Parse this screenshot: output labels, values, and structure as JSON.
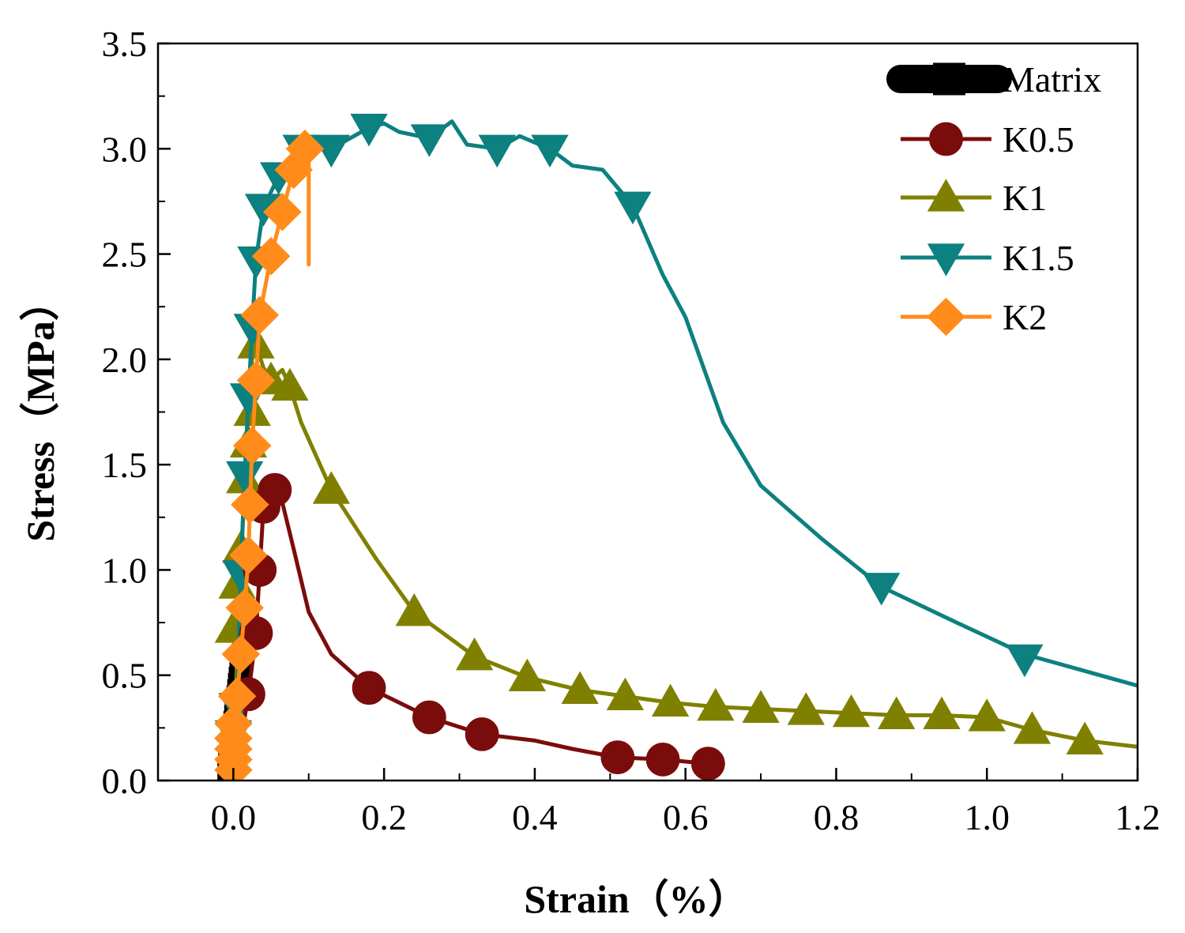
{
  "chart_data": {
    "type": "line",
    "xlabel": "Strain（%）",
    "ylabel": "Stress（MPa）",
    "xlim": [
      -0.1,
      1.2
    ],
    "ylim": [
      0.0,
      3.5
    ],
    "x_ticks": [
      "0.0",
      "0.2",
      "0.4",
      "0.6",
      "0.8",
      "1.0",
      "1.2"
    ],
    "y_ticks": [
      "0.0",
      "0.5",
      "1.0",
      "1.5",
      "2.0",
      "2.5",
      "3.0",
      "3.5"
    ],
    "grid": false,
    "legend_position": "top-right",
    "series": [
      {
        "name": "Matrix",
        "color": "#000000",
        "marker": "square",
        "x": [
          -0.007,
          -0.006,
          -0.005,
          -0.004,
          -0.003,
          -0.002,
          -0.001,
          0.0,
          0.001,
          0.002,
          0.003,
          0.004,
          0.005,
          0.006,
          0.007,
          0.008,
          0.009,
          0.01,
          0.011,
          0.012,
          0.013,
          0.014,
          0.015,
          0.016,
          0.017,
          0.018,
          0.019
        ],
        "y": [
          0.05,
          0.08,
          0.1,
          0.13,
          0.16,
          0.19,
          0.22,
          0.25,
          0.28,
          0.31,
          0.34,
          0.37,
          0.4,
          0.43,
          0.46,
          0.49,
          0.52,
          0.55,
          0.58,
          0.6,
          0.62,
          0.64,
          0.66,
          0.67,
          0.68,
          0.69,
          0.7
        ]
      },
      {
        "name": "K0.5",
        "color": "#7b0c0c",
        "marker": "circle",
        "x": [
          0.0,
          0.005,
          0.01,
          0.015,
          0.02,
          0.025,
          0.03,
          0.035,
          0.04,
          0.045,
          0.055,
          0.065,
          0.08,
          0.1,
          0.13,
          0.18,
          0.26,
          0.33,
          0.4,
          0.45,
          0.51,
          0.57,
          0.63,
          0.65
        ],
        "y": [
          0.05,
          0.12,
          0.22,
          0.3,
          0.41,
          0.55,
          0.7,
          1.0,
          1.3,
          1.4,
          1.38,
          1.32,
          1.1,
          0.8,
          0.6,
          0.44,
          0.3,
          0.22,
          0.19,
          0.15,
          0.11,
          0.1,
          0.08,
          0.08
        ],
        "marker_x": [
          0.02,
          0.03,
          0.035,
          0.04,
          0.055,
          0.18,
          0.26,
          0.33,
          0.51,
          0.57,
          0.63
        ],
        "marker_y": [
          0.41,
          0.7,
          1.0,
          1.3,
          1.38,
          0.44,
          0.3,
          0.22,
          0.11,
          0.1,
          0.08
        ]
      },
      {
        "name": "K1",
        "color": "#808000",
        "marker": "triangle-up",
        "x": [
          0.0,
          0.005,
          0.01,
          0.015,
          0.02,
          0.025,
          0.03,
          0.04,
          0.05,
          0.065,
          0.075,
          0.09,
          0.13,
          0.19,
          0.24,
          0.32,
          0.39,
          0.46,
          0.52,
          0.58,
          0.64,
          0.7,
          0.76,
          0.82,
          0.88,
          0.94,
          1.0,
          1.06,
          1.13,
          1.2
        ],
        "y": [
          0.05,
          0.6,
          1.0,
          1.45,
          1.75,
          2.0,
          2.07,
          1.96,
          1.9,
          1.95,
          1.87,
          1.7,
          1.38,
          1.05,
          0.8,
          0.59,
          0.49,
          0.43,
          0.4,
          0.37,
          0.35,
          0.34,
          0.33,
          0.32,
          0.31,
          0.31,
          0.3,
          0.24,
          0.19,
          0.16
        ],
        "marker_x": [
          0.0,
          0.005,
          0.01,
          0.015,
          0.02,
          0.025,
          0.03,
          0.05,
          0.075,
          0.13,
          0.24,
          0.32,
          0.39,
          0.46,
          0.52,
          0.58,
          0.64,
          0.7,
          0.76,
          0.82,
          0.88,
          0.94,
          1.0,
          1.06,
          1.13
        ],
        "marker_y": [
          0.72,
          0.93,
          1.1,
          1.43,
          1.6,
          1.75,
          2.07,
          1.9,
          1.87,
          1.38,
          0.8,
          0.59,
          0.49,
          0.43,
          0.4,
          0.37,
          0.35,
          0.34,
          0.33,
          0.32,
          0.31,
          0.31,
          0.3,
          0.24,
          0.19
        ]
      },
      {
        "name": "K1.5",
        "color": "#0d8080",
        "marker": "triangle-down",
        "x": [
          0.0,
          0.005,
          0.01,
          0.015,
          0.02,
          0.025,
          0.03,
          0.04,
          0.06,
          0.09,
          0.13,
          0.18,
          0.2,
          0.22,
          0.26,
          0.29,
          0.31,
          0.35,
          0.38,
          0.42,
          0.45,
          0.49,
          0.53,
          0.57,
          0.6,
          0.65,
          0.7,
          0.78,
          0.86,
          0.96,
          1.05,
          1.15,
          1.2
        ],
        "y": [
          0.05,
          0.4,
          1.0,
          1.45,
          1.82,
          2.15,
          2.47,
          2.72,
          2.87,
          3.0,
          3.0,
          3.1,
          3.12,
          3.08,
          3.05,
          3.13,
          3.02,
          3.0,
          3.06,
          3.0,
          2.92,
          2.9,
          2.73,
          2.4,
          2.2,
          1.7,
          1.4,
          1.15,
          0.92,
          0.75,
          0.6,
          0.5,
          0.45
        ],
        "marker_x": [
          0.0,
          0.005,
          0.01,
          0.015,
          0.02,
          0.025,
          0.03,
          0.04,
          0.06,
          0.09,
          0.13,
          0.18,
          0.26,
          0.35,
          0.42,
          0.53,
          0.86,
          1.05
        ],
        "marker_y": [
          0.22,
          0.35,
          0.98,
          1.45,
          1.82,
          2.15,
          2.47,
          2.72,
          2.87,
          3.0,
          3.0,
          3.1,
          3.05,
          3.0,
          3.0,
          2.73,
          0.92,
          0.58
        ]
      },
      {
        "name": "K2",
        "color": "#ff8c1a",
        "marker": "diamond",
        "x": [
          0.0,
          0.0,
          0.0,
          0.0,
          0.005,
          0.01,
          0.015,
          0.02,
          0.022,
          0.025,
          0.03,
          0.035,
          0.05,
          0.065,
          0.08,
          0.09,
          0.1,
          0.1
        ],
        "y": [
          0.05,
          0.1,
          0.2,
          0.27,
          0.4,
          0.6,
          0.82,
          1.07,
          1.31,
          1.59,
          1.9,
          2.21,
          2.49,
          2.7,
          2.9,
          3.0,
          2.95,
          2.45
        ],
        "marker_x": [
          0.0,
          0.0,
          0.0,
          0.0,
          0.0,
          0.005,
          0.01,
          0.015,
          0.02,
          0.022,
          0.025,
          0.03,
          0.035,
          0.05,
          0.065,
          0.08,
          0.095
        ],
        "marker_y": [
          0.05,
          0.1,
          0.15,
          0.2,
          0.27,
          0.4,
          0.6,
          0.82,
          1.07,
          1.31,
          1.59,
          1.9,
          2.21,
          2.49,
          2.7,
          2.9,
          3.0
        ]
      }
    ]
  }
}
